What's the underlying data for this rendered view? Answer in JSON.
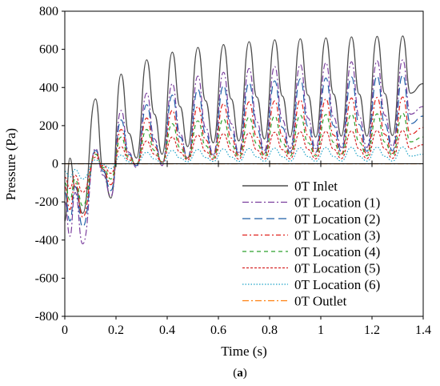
{
  "chart_data": {
    "type": "line",
    "xlabel": "Time (s)",
    "ylabel": "Pressure (Pa)",
    "xlim": [
      0,
      1.4
    ],
    "ylim": [
      -800,
      800
    ],
    "x_ticks": [
      "0",
      "0.2",
      "0.4",
      "0.6",
      "0.8",
      "1",
      "1.2",
      "1.4"
    ],
    "y_ticks": [
      "-800",
      "-600",
      "-400",
      "-200",
      "0",
      "200",
      "400",
      "600",
      "800"
    ],
    "grid": false,
    "legend_position": "bottom-right",
    "caption": "(a)",
    "caption_bold": "a",
    "period": 0.1,
    "series": [
      {
        "name": "0T Inlet",
        "color": "#4d4d4d",
        "dash": "",
        "x": [
          0.0,
          0.02,
          0.04,
          0.07,
          0.12,
          0.15,
          0.18,
          0.22,
          0.25,
          0.28,
          0.32,
          0.35,
          0.38,
          0.42,
          0.45,
          0.48,
          0.52,
          0.55,
          0.58,
          0.62,
          0.65,
          0.68,
          0.72,
          0.75,
          0.78,
          0.82,
          0.85,
          0.88,
          0.92,
          0.95,
          0.98,
          1.02,
          1.05,
          1.08,
          1.12,
          1.15,
          1.18,
          1.22,
          1.25,
          1.28,
          1.32,
          1.35,
          1.4
        ],
        "y": [
          -300,
          30,
          -120,
          -260,
          340,
          -30,
          -180,
          470,
          160,
          30,
          545,
          260,
          50,
          585,
          300,
          90,
          610,
          330,
          110,
          625,
          340,
          120,
          640,
          350,
          130,
          650,
          355,
          140,
          655,
          360,
          140,
          660,
          365,
          145,
          665,
          365,
          145,
          668,
          368,
          148,
          670,
          370,
          420
        ]
      },
      {
        "name": "0T Location (1)",
        "color": "#7b3f9e",
        "dash": "8,3,2,3",
        "x": [
          0.0,
          0.02,
          0.04,
          0.07,
          0.12,
          0.15,
          0.18,
          0.22,
          0.25,
          0.28,
          0.32,
          0.35,
          0.38,
          0.42,
          0.45,
          0.48,
          0.52,
          0.55,
          0.58,
          0.62,
          0.65,
          0.68,
          0.72,
          0.75,
          0.78,
          0.82,
          0.85,
          0.88,
          0.92,
          0.95,
          0.98,
          1.02,
          1.05,
          1.08,
          1.12,
          1.15,
          1.18,
          1.22,
          1.25,
          1.28,
          1.32,
          1.35,
          1.4
        ],
        "y": [
          -200,
          -380,
          -150,
          -420,
          80,
          -60,
          -170,
          280,
          60,
          -20,
          370,
          130,
          -10,
          420,
          160,
          30,
          460,
          190,
          50,
          480,
          210,
          60,
          500,
          220,
          70,
          510,
          230,
          80,
          520,
          240,
          80,
          530,
          245,
          85,
          535,
          250,
          85,
          540,
          255,
          90,
          545,
          260,
          300
        ]
      },
      {
        "name": "0T Location (2)",
        "color": "#1f5fa8",
        "dash": "10,5",
        "x": [
          0.0,
          0.02,
          0.04,
          0.07,
          0.12,
          0.15,
          0.18,
          0.22,
          0.25,
          0.28,
          0.32,
          0.35,
          0.38,
          0.42,
          0.45,
          0.48,
          0.52,
          0.55,
          0.58,
          0.62,
          0.65,
          0.68,
          0.72,
          0.75,
          0.78,
          0.82,
          0.85,
          0.88,
          0.92,
          0.95,
          0.98,
          1.02,
          1.05,
          1.08,
          1.12,
          1.15,
          1.18,
          1.22,
          1.25,
          1.28,
          1.32,
          1.35,
          1.4
        ],
        "y": [
          -150,
          -300,
          -120,
          -330,
          70,
          -40,
          -140,
          230,
          50,
          -10,
          310,
          110,
          0,
          360,
          140,
          30,
          390,
          160,
          40,
          410,
          175,
          50,
          425,
          185,
          55,
          435,
          190,
          60,
          445,
          195,
          60,
          450,
          200,
          65,
          455,
          205,
          65,
          460,
          208,
          68,
          465,
          210,
          250
        ]
      },
      {
        "name": "0T Location (3)",
        "color": "#e0201b",
        "dash": "6,3,2,3",
        "x": [
          0.0,
          0.02,
          0.04,
          0.07,
          0.12,
          0.15,
          0.18,
          0.22,
          0.25,
          0.28,
          0.32,
          0.35,
          0.38,
          0.42,
          0.45,
          0.48,
          0.52,
          0.55,
          0.58,
          0.62,
          0.65,
          0.68,
          0.72,
          0.75,
          0.78,
          0.82,
          0.85,
          0.88,
          0.92,
          0.95,
          0.98,
          1.02,
          1.05,
          1.08,
          1.12,
          1.15,
          1.18,
          1.22,
          1.25,
          1.28,
          1.32,
          1.35,
          1.4
        ],
        "y": [
          -120,
          -240,
          -100,
          -280,
          60,
          -30,
          -110,
          180,
          40,
          -5,
          240,
          90,
          5,
          280,
          110,
          30,
          300,
          125,
          40,
          315,
          135,
          45,
          325,
          140,
          48,
          330,
          145,
          50,
          335,
          148,
          50,
          340,
          150,
          52,
          345,
          152,
          52,
          348,
          154,
          54,
          350,
          155,
          190
        ]
      },
      {
        "name": "0T Location (4)",
        "color": "#2ca02c",
        "dash": "5,4",
        "x": [
          0.0,
          0.02,
          0.04,
          0.07,
          0.12,
          0.15,
          0.18,
          0.22,
          0.25,
          0.28,
          0.32,
          0.35,
          0.38,
          0.42,
          0.45,
          0.48,
          0.52,
          0.55,
          0.58,
          0.62,
          0.65,
          0.68,
          0.72,
          0.75,
          0.78,
          0.82,
          0.85,
          0.88,
          0.92,
          0.95,
          0.98,
          1.02,
          1.05,
          1.08,
          1.12,
          1.15,
          1.18,
          1.22,
          1.25,
          1.28,
          1.32,
          1.35,
          1.4
        ],
        "y": [
          -100,
          -190,
          -80,
          -220,
          50,
          -20,
          -80,
          140,
          30,
          0,
          180,
          70,
          10,
          210,
          85,
          25,
          225,
          95,
          30,
          235,
          100,
          35,
          245,
          105,
          38,
          250,
          108,
          40,
          255,
          110,
          40,
          258,
          112,
          42,
          260,
          113,
          42,
          262,
          114,
          43,
          265,
          115,
          140
        ]
      },
      {
        "name": "0T Location (5)",
        "color": "#d62728",
        "dash": "3,2",
        "x": [
          0.0,
          0.02,
          0.04,
          0.07,
          0.12,
          0.15,
          0.18,
          0.22,
          0.25,
          0.28,
          0.32,
          0.35,
          0.38,
          0.42,
          0.45,
          0.48,
          0.52,
          0.55,
          0.58,
          0.62,
          0.65,
          0.68,
          0.72,
          0.75,
          0.78,
          0.82,
          0.85,
          0.88,
          0.92,
          0.95,
          0.98,
          1.02,
          1.05,
          1.08,
          1.12,
          1.15,
          1.18,
          1.22,
          1.25,
          1.28,
          1.32,
          1.35,
          1.4
        ],
        "y": [
          -70,
          -130,
          -60,
          -150,
          35,
          -10,
          -50,
          90,
          20,
          0,
          120,
          50,
          8,
          140,
          60,
          20,
          150,
          65,
          22,
          158,
          70,
          24,
          162,
          72,
          25,
          165,
          74,
          26,
          168,
          75,
          26,
          170,
          76,
          27,
          172,
          77,
          27,
          174,
          78,
          28,
          175,
          78,
          100
        ]
      },
      {
        "name": "0T Location (6)",
        "color": "#1fa3c7",
        "dash": "1.5,2",
        "x": [
          0.0,
          0.02,
          0.04,
          0.07,
          0.12,
          0.15,
          0.18,
          0.22,
          0.25,
          0.28,
          0.32,
          0.35,
          0.38,
          0.42,
          0.45,
          0.48,
          0.52,
          0.55,
          0.58,
          0.62,
          0.65,
          0.68,
          0.72,
          0.75,
          0.78,
          0.82,
          0.85,
          0.88,
          0.92,
          0.95,
          0.98,
          1.02,
          1.05,
          1.08,
          1.12,
          1.15,
          1.18,
          1.22,
          1.25,
          1.28,
          1.32,
          1.35,
          1.4
        ],
        "y": [
          -40,
          -70,
          -30,
          -80,
          20,
          -5,
          -25,
          45,
          10,
          0,
          60,
          25,
          5,
          70,
          30,
          10,
          75,
          33,
          12,
          78,
          35,
          12,
          80,
          36,
          13,
          82,
          37,
          13,
          84,
          38,
          13,
          85,
          38,
          14,
          86,
          39,
          14,
          87,
          39,
          14,
          88,
          40,
          50
        ]
      },
      {
        "name": "0T Outlet",
        "color": "#ff7f0e",
        "dash": "8,3,2,3",
        "x": [
          0.0,
          0.2,
          0.4,
          0.6,
          0.8,
          1.0,
          1.2,
          1.4
        ],
        "y": [
          0,
          0,
          0,
          0,
          0,
          0,
          0,
          0
        ]
      }
    ]
  }
}
